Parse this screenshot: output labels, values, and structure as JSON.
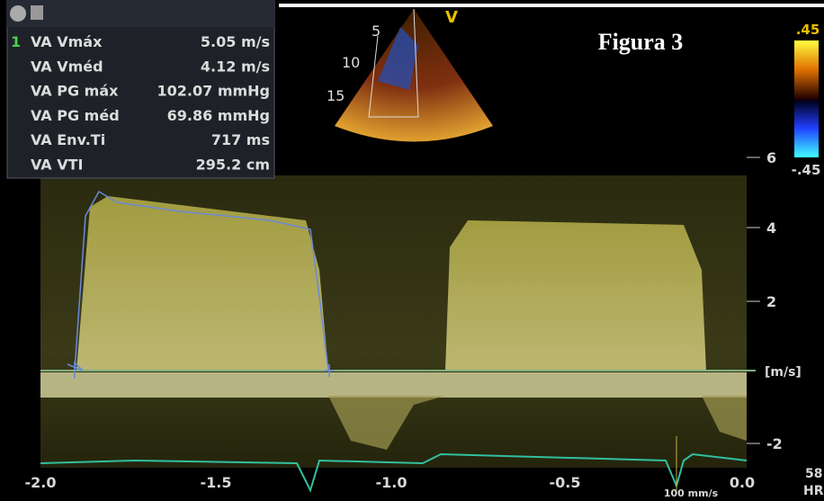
{
  "panel": {
    "rows": [
      {
        "index": "1",
        "label": "VA Vmáx",
        "value": "5.05 m/s"
      },
      {
        "label": "VA Vméd",
        "value": "4.12 m/s"
      },
      {
        "label": "VA PG máx",
        "value": "102.07 mmHg"
      },
      {
        "label": "VA PG méd",
        "value": "69.86 mmHg"
      },
      {
        "label": "VA Env.Ti",
        "value": "717 ms"
      },
      {
        "label": "VA VTI",
        "value": "295.2 cm"
      }
    ]
  },
  "image": {
    "title": "Figura 3",
    "sector_label": "V",
    "depth_labels": [
      "5",
      "10",
      "15"
    ],
    "color_scale": {
      "top": ".45",
      "bottom": "-.45"
    }
  },
  "spectrum": {
    "y_labels": [
      "6",
      "4",
      "2",
      "[m/s]",
      "-2"
    ],
    "x_labels": [
      "-2.0",
      "-1.5",
      "-1.0",
      "-0.5",
      "0.0"
    ],
    "sweep": "100 mm/s",
    "hr_value": "58",
    "hr_label": "HR"
  }
}
